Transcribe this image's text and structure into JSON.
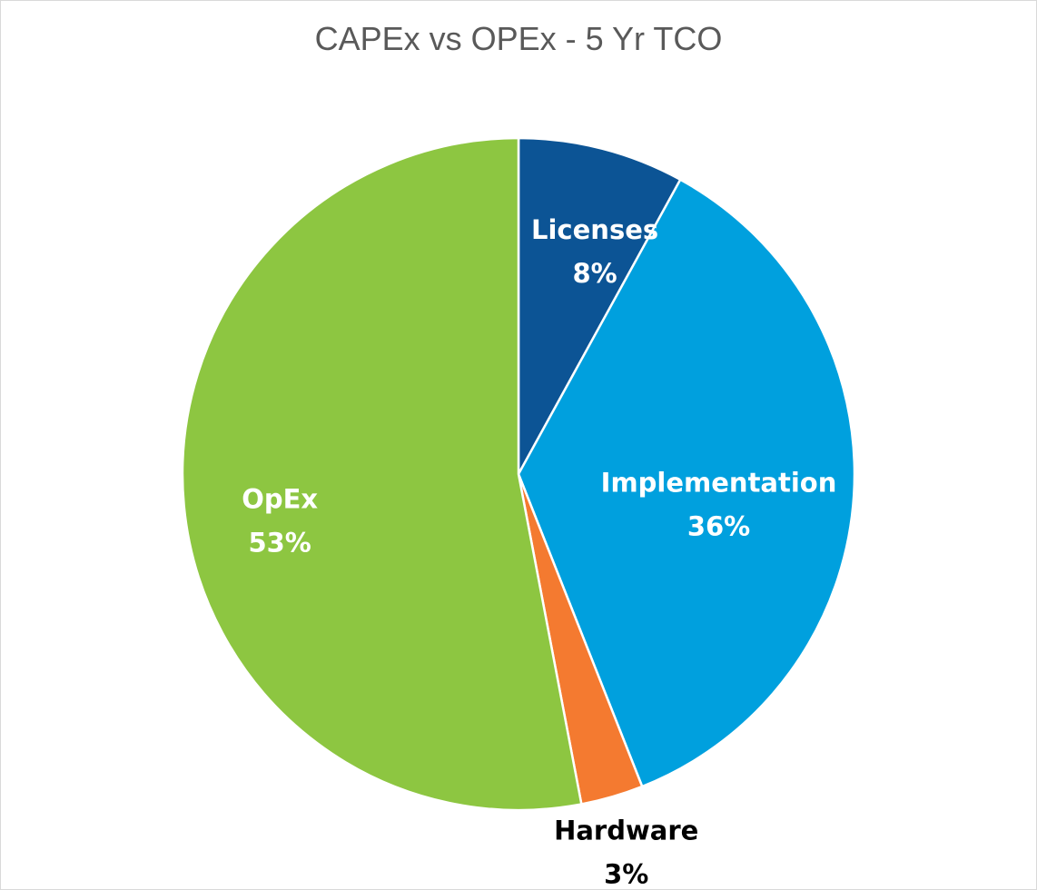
{
  "chart_data": {
    "type": "pie",
    "title": "CAPEx vs OPEx - 5 Yr TCO",
    "start_angle_deg": 0,
    "direction": "clockwise",
    "slices": [
      {
        "label": "Licenses",
        "value": 8,
        "value_label": "8%",
        "color": "#0c5495",
        "label_color": "#ffffff"
      },
      {
        "label": "Implementation",
        "value": 36,
        "value_label": "36%",
        "color": "#00a0de",
        "label_color": "#ffffff"
      },
      {
        "label": "Hardware",
        "value": 3,
        "value_label": "3%",
        "color": "#f47a30",
        "label_color": "#000000"
      },
      {
        "label": "OpEx",
        "value": 53,
        "value_label": "53%",
        "color": "#8dc641",
        "label_color": "#ffffff"
      }
    ],
    "legend": "none"
  }
}
